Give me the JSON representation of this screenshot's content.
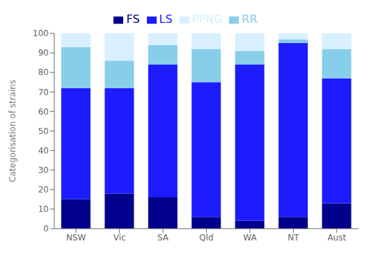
{
  "chart_data": {
    "type": "bar",
    "stacked": true,
    "categories": [
      "NSW",
      "Vic",
      "SA",
      "Qld",
      "WA",
      "NT",
      "Aust"
    ],
    "series": [
      {
        "name": "FS",
        "color": "#00008B",
        "values": [
          15,
          18,
          16,
          6,
          4,
          6,
          13
        ]
      },
      {
        "name": "LS",
        "color": "#1C1CFF",
        "values": [
          57,
          54,
          68,
          69,
          80,
          89,
          64
        ]
      },
      {
        "name": "RR",
        "color": "#87CEEB",
        "values": [
          21,
          14,
          10,
          17,
          7,
          2,
          15
        ]
      },
      {
        "name": "PPNG",
        "color": "#D8F0FF",
        "values": [
          7,
          14,
          6,
          8,
          9,
          3,
          8
        ]
      }
    ],
    "ylabel": "Categorisation of strains",
    "ylim": [
      0,
      100
    ],
    "yticks": [
      0,
      10,
      20,
      30,
      40,
      50,
      60,
      70,
      80,
      90,
      100
    ],
    "grid": false,
    "legend": "top"
  }
}
